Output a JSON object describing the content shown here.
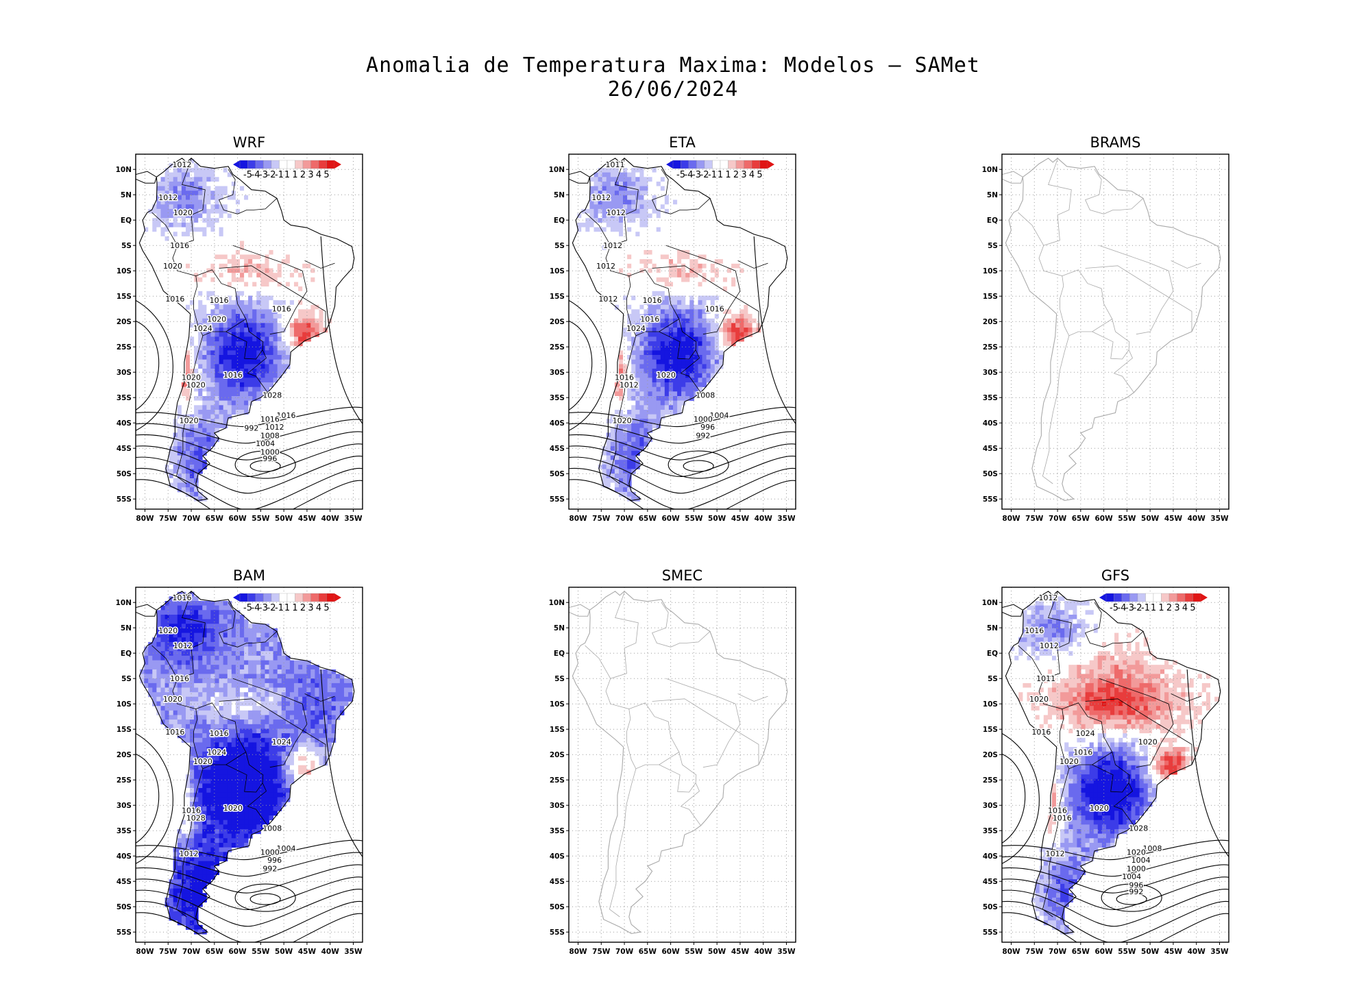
{
  "title_line1": "Anomalia de Temperatura Maxima: Modelos – SAMet",
  "title_line2": "26/06/2024",
  "lat_ticks": [
    "10N",
    "5N",
    "EQ",
    "5S",
    "10S",
    "15S",
    "20S",
    "25S",
    "30S",
    "35S",
    "40S",
    "45S",
    "50S",
    "55S"
  ],
  "lon_ticks": [
    "80W",
    "75W",
    "70W",
    "65W",
    "60W",
    "55W",
    "50W",
    "45W",
    "40W",
    "35W"
  ],
  "legend_labels": [
    "-5",
    "-4",
    "-3",
    "-2",
    "-1",
    "1",
    "1",
    "2",
    "3",
    "4",
    "5"
  ],
  "colors": {
    "legend": [
      "#1515e0",
      "#3c3ce8",
      "#6a6aee",
      "#9999f2",
      "#c8c8f6",
      "#ffffff",
      "#ffffff",
      "#f6c8c8",
      "#f29a9a",
      "#ee6a6a",
      "#e83c3c",
      "#e01515"
    ],
    "cold": "#2020e6",
    "warm": "#e61e1e",
    "coast_models": "#000000",
    "coast_empty": "#a9a9a9"
  },
  "panels": [
    {
      "name": "WRF",
      "has_data": true,
      "tone": "neutral",
      "isobars": [
        "1012",
        "1012",
        "1020",
        "1016",
        "1020",
        "1016",
        "1016",
        "1016",
        "1020",
        "1024",
        "1016",
        "1020",
        "1020",
        "1028",
        "1020",
        "1016",
        "1016",
        "1012",
        "1008",
        "1004",
        "1000",
        "996",
        "992"
      ]
    },
    {
      "name": "ETA",
      "has_data": true,
      "tone": "neutral",
      "isobars": [
        "1011",
        "1012",
        "1012",
        "1012",
        "1012",
        "1012",
        "1016",
        "1016",
        "1016",
        "1024",
        "1020",
        "1016",
        "1012",
        "1008",
        "1020",
        "1004",
        "1000",
        "996",
        "992"
      ]
    },
    {
      "name": "BRAMS",
      "has_data": false,
      "isobars": []
    },
    {
      "name": "BAM",
      "has_data": true,
      "tone": "cold",
      "isobars": [
        "1016",
        "1020",
        "1012",
        "1016",
        "1020",
        "1016",
        "1016",
        "1024",
        "1024",
        "1020",
        "1020",
        "1016",
        "1028",
        "1008",
        "1012",
        "1004",
        "1000",
        "996",
        "992"
      ]
    },
    {
      "name": "SMEC",
      "has_data": false,
      "isobars": []
    },
    {
      "name": "GFS",
      "has_data": true,
      "tone": "warm",
      "isobars": [
        "1012",
        "1016",
        "1012",
        "1011",
        "1020",
        "1016",
        "1024",
        "1020",
        "1016",
        "1020",
        "1020",
        "1016",
        "1016",
        "1028",
        "1012",
        "1008",
        "1020",
        "1004",
        "1000",
        "1004",
        "996",
        "992"
      ]
    }
  ]
}
